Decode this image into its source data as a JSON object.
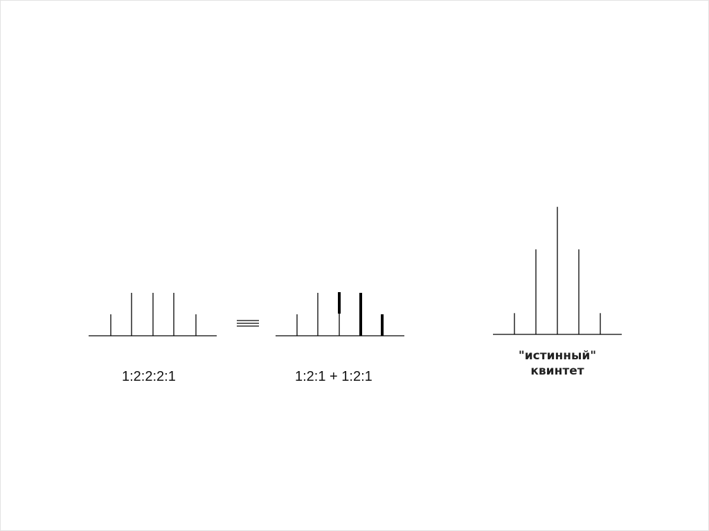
{
  "diagrams": [
    {
      "id": "a",
      "label": "1:2:2:2:1",
      "lines": [
        {
          "intensity": 1,
          "bold": false
        },
        {
          "intensity": 2,
          "bold": false
        },
        {
          "intensity": 2,
          "bold": false
        },
        {
          "intensity": 2,
          "bold": false
        },
        {
          "intensity": 1,
          "bold": false
        }
      ]
    },
    {
      "id": "b",
      "label": "1:2:1  + 1:2:1",
      "lines": [
        {
          "intensity": 1,
          "bold": false
        },
        {
          "intensity": 2,
          "bold": false
        },
        {
          "intensity": 1,
          "bold": true,
          "offset": 1
        },
        {
          "intensity": 2,
          "bold": true
        },
        {
          "intensity": 1,
          "bold": true
        }
      ]
    },
    {
      "id": "c",
      "caption_line1": "\"истинный\"",
      "caption_line2": "квинтет",
      "lines": [
        {
          "intensity": 1,
          "bold": false
        },
        {
          "intensity": 4,
          "bold": false
        },
        {
          "intensity": 6,
          "bold": false
        },
        {
          "intensity": 4,
          "bold": false
        },
        {
          "intensity": 1,
          "bold": false
        }
      ]
    }
  ],
  "equivalence_symbol": "≡"
}
